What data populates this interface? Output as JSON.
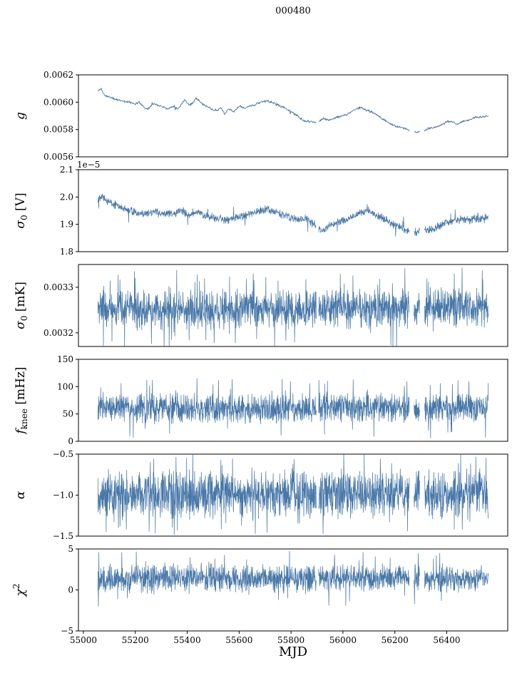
{
  "chart_data": {
    "type": "line",
    "title": "000480",
    "xlabel": "MJD",
    "grid": false,
    "legend": "none",
    "line_color": "#4878a8",
    "xlim": [
      54981,
      56635
    ],
    "x_data_range": [
      55056,
      56560
    ],
    "xticks": [
      55000,
      55200,
      55400,
      55600,
      55800,
      56000,
      56200,
      56400
    ],
    "xtick_labels": [
      "55000",
      "55200",
      "55400",
      "55600",
      "55800",
      "56000",
      "56200",
      "56400"
    ],
    "gaps": [
      [
        55897,
        55906
      ],
      [
        56256,
        56274
      ],
      [
        56296,
        56314
      ]
    ],
    "panels": [
      {
        "name": "g",
        "ylabel": {
          "symbol": "g",
          "unit": ""
        },
        "ylim": [
          0.0056,
          0.0062
        ],
        "yticks": [
          0.0056,
          0.0058,
          0.006,
          0.0062
        ],
        "ytick_labels": [
          "0.0056",
          "0.0058",
          "0.0060",
          "0.0062"
        ],
        "offset_text": "",
        "n_points": 900,
        "seed": 11,
        "noise_amp": 1e-05,
        "spike_prob": 0.01,
        "spike_amp": 2e-05,
        "line_width": 0.9,
        "baseline": [
          [
            55056,
            0.00608
          ],
          [
            55068,
            0.0061
          ],
          [
            55082,
            0.00605
          ],
          [
            55100,
            0.00604
          ],
          [
            55125,
            0.00602
          ],
          [
            55150,
            0.00601
          ],
          [
            55175,
            0.006
          ],
          [
            55200,
            0.00599
          ],
          [
            55215,
            0.006
          ],
          [
            55235,
            0.00596
          ],
          [
            55250,
            0.00595
          ],
          [
            55265,
            0.00599
          ],
          [
            55285,
            0.00598
          ],
          [
            55305,
            0.00597
          ],
          [
            55325,
            0.00595
          ],
          [
            55345,
            0.00597
          ],
          [
            55365,
            0.00595
          ],
          [
            55390,
            0.00602
          ],
          [
            55405,
            0.00598
          ],
          [
            55420,
            0.00599
          ],
          [
            55435,
            0.00603
          ],
          [
            55455,
            0.00599
          ],
          [
            55475,
            0.00597
          ],
          [
            55495,
            0.00595
          ],
          [
            55515,
            0.00594
          ],
          [
            55530,
            0.00596
          ],
          [
            55545,
            0.00591
          ],
          [
            55560,
            0.00595
          ],
          [
            55580,
            0.00593
          ],
          [
            55600,
            0.00597
          ],
          [
            55620,
            0.00596
          ],
          [
            55645,
            0.00597
          ],
          [
            55670,
            0.00599
          ],
          [
            55700,
            0.00601
          ],
          [
            55725,
            0.006
          ],
          [
            55750,
            0.00598
          ],
          [
            55775,
            0.00596
          ],
          [
            55800,
            0.00593
          ],
          [
            55825,
            0.0059
          ],
          [
            55850,
            0.00586
          ],
          [
            55875,
            0.00586
          ],
          [
            55900,
            0.00585
          ],
          [
            55925,
            0.00588
          ],
          [
            55950,
            0.00587
          ],
          [
            55975,
            0.00589
          ],
          [
            56000,
            0.0059
          ],
          [
            56025,
            0.00592
          ],
          [
            56050,
            0.00595
          ],
          [
            56070,
            0.00596
          ],
          [
            56090,
            0.00594
          ],
          [
            56110,
            0.00593
          ],
          [
            56135,
            0.0059
          ],
          [
            56160,
            0.00587
          ],
          [
            56185,
            0.00584
          ],
          [
            56210,
            0.00582
          ],
          [
            56235,
            0.00581
          ],
          [
            56260,
            0.00579
          ],
          [
            56285,
            0.00578
          ],
          [
            56310,
            0.00579
          ],
          [
            56335,
            0.00581
          ],
          [
            56360,
            0.00582
          ],
          [
            56385,
            0.00584
          ],
          [
            56405,
            0.00586
          ],
          [
            56425,
            0.00585
          ],
          [
            56445,
            0.00584
          ],
          [
            56465,
            0.00586
          ],
          [
            56485,
            0.00587
          ],
          [
            56510,
            0.00589
          ],
          [
            56535,
            0.00589
          ],
          [
            56560,
            0.0059
          ]
        ]
      },
      {
        "name": "sigma0-V",
        "ylabel": {
          "symbol": "σ",
          "sub": "0",
          "unit": " [V]"
        },
        "ylim": [
          1.8e-05,
          2.1e-05
        ],
        "yticks": [
          1.8e-05,
          1.9e-05,
          2e-05,
          2.1e-05
        ],
        "ytick_labels": [
          "1.8",
          "1.9",
          "2.0",
          "2.1"
        ],
        "offset_text": "1e−5",
        "n_points": 1500,
        "seed": 22,
        "noise_amp": 1.7e-07,
        "spike_prob": 0.02,
        "spike_amp": 4.5e-07,
        "line_width": 0.75,
        "baseline": [
          [
            55056,
            1.99e-05
          ],
          [
            55070,
            2.01e-05
          ],
          [
            55090,
            1.985e-05
          ],
          [
            55115,
            1.975e-05
          ],
          [
            55140,
            1.965e-05
          ],
          [
            55170,
            1.95e-05
          ],
          [
            55200,
            1.945e-05
          ],
          [
            55230,
            1.935e-05
          ],
          [
            55260,
            1.945e-05
          ],
          [
            55290,
            1.945e-05
          ],
          [
            55320,
            1.935e-05
          ],
          [
            55350,
            1.94e-05
          ],
          [
            55380,
            1.95e-05
          ],
          [
            55410,
            1.935e-05
          ],
          [
            55440,
            1.945e-05
          ],
          [
            55470,
            1.93e-05
          ],
          [
            55500,
            1.925e-05
          ],
          [
            55530,
            1.92e-05
          ],
          [
            55560,
            1.915e-05
          ],
          [
            55590,
            1.925e-05
          ],
          [
            55620,
            1.93e-05
          ],
          [
            55650,
            1.94e-05
          ],
          [
            55680,
            1.95e-05
          ],
          [
            55710,
            1.955e-05
          ],
          [
            55740,
            1.945e-05
          ],
          [
            55770,
            1.935e-05
          ],
          [
            55800,
            1.925e-05
          ],
          [
            55830,
            1.915e-05
          ],
          [
            55860,
            1.92e-05
          ],
          [
            55890,
            1.9e-05
          ],
          [
            55920,
            1.875e-05
          ],
          [
            55950,
            1.895e-05
          ],
          [
            55980,
            1.905e-05
          ],
          [
            56010,
            1.915e-05
          ],
          [
            56040,
            1.93e-05
          ],
          [
            56070,
            1.945e-05
          ],
          [
            56100,
            1.95e-05
          ],
          [
            56130,
            1.935e-05
          ],
          [
            56160,
            1.92e-05
          ],
          [
            56190,
            1.9e-05
          ],
          [
            56220,
            1.89e-05
          ],
          [
            56250,
            1.875e-05
          ],
          [
            56280,
            1.87e-05
          ],
          [
            56310,
            1.875e-05
          ],
          [
            56340,
            1.88e-05
          ],
          [
            56370,
            1.895e-05
          ],
          [
            56400,
            1.905e-05
          ],
          [
            56430,
            1.915e-05
          ],
          [
            56460,
            1.92e-05
          ],
          [
            56490,
            1.92e-05
          ],
          [
            56530,
            1.92e-05
          ],
          [
            56560,
            1.925e-05
          ]
        ]
      },
      {
        "name": "sigma0-mK",
        "ylabel": {
          "symbol": "σ",
          "sub": "0",
          "unit": " [mK]"
        },
        "ylim": [
          0.00317,
          0.00335
        ],
        "yticks": [
          0.0032,
          0.0033
        ],
        "ytick_labels": [
          "0.0032",
          "0.0033"
        ],
        "offset_text": "",
        "n_points": 1700,
        "seed": 33,
        "noise_amp": 4.8e-05,
        "spike_prob": 0.09,
        "spike_amp": 8.8e-05,
        "line_width": 0.75,
        "baseline": [
          [
            55056,
            0.003252
          ],
          [
            55150,
            0.00325
          ],
          [
            55250,
            0.003248
          ],
          [
            55350,
            0.003252
          ],
          [
            55450,
            0.00325
          ],
          [
            55550,
            0.003253
          ],
          [
            55650,
            0.003255
          ],
          [
            55750,
            0.003252
          ],
          [
            55850,
            0.00325
          ],
          [
            55950,
            0.003254
          ],
          [
            56050,
            0.003256
          ],
          [
            56150,
            0.003253
          ],
          [
            56250,
            0.003255
          ],
          [
            56350,
            0.003258
          ],
          [
            56450,
            0.003257
          ],
          [
            56560,
            0.003252
          ]
        ]
      },
      {
        "name": "f-knee",
        "ylabel": {
          "symbol": "f",
          "sub": "knee",
          "unit": " [mHz]"
        },
        "ylim": [
          0,
          150
        ],
        "yticks": [
          0,
          50,
          100,
          150
        ],
        "ytick_labels": [
          "0",
          "50",
          "100",
          "150"
        ],
        "offset_text": "",
        "n_points": 1700,
        "seed": 44,
        "noise_amp": 30,
        "spike_prob": 0.07,
        "spike_amp": 55,
        "line_width": 0.75,
        "baseline": [
          [
            55056,
            62
          ],
          [
            55400,
            60
          ],
          [
            55800,
            61
          ],
          [
            56100,
            62
          ],
          [
            56300,
            60
          ],
          [
            56560,
            62
          ]
        ]
      },
      {
        "name": "alpha",
        "ylabel": {
          "symbol": "α",
          "unit": ""
        },
        "ylim": [
          -1.5,
          -0.5
        ],
        "yticks": [
          -1.5,
          -1.0,
          -0.5
        ],
        "ytick_labels": [
          "−1.5",
          "−1.0",
          "−0.5"
        ],
        "offset_text": "",
        "n_points": 1700,
        "seed": 55,
        "noise_amp": 0.32,
        "spike_prob": 0.07,
        "spike_amp": 0.5,
        "line_width": 0.75,
        "baseline": [
          [
            55056,
            -0.98
          ],
          [
            55600,
            -1.0
          ],
          [
            56000,
            -0.98
          ],
          [
            56560,
            -0.99
          ]
        ]
      },
      {
        "name": "chi2",
        "ylabel": {
          "symbol": "χ",
          "sup": "2",
          "unit": ""
        },
        "ylim": [
          -5,
          5
        ],
        "yticks": [
          -5,
          0,
          5
        ],
        "ytick_labels": [
          "−5",
          "0",
          "5"
        ],
        "offset_text": "",
        "n_points": 1700,
        "seed": 66,
        "noise_amp": 1.9,
        "spike_prob": 0.05,
        "spike_amp": 3.4,
        "line_width": 0.75,
        "baseline": [
          [
            55056,
            1.4
          ],
          [
            55600,
            1.5
          ],
          [
            56000,
            1.4
          ],
          [
            56560,
            1.5
          ]
        ]
      }
    ]
  }
}
